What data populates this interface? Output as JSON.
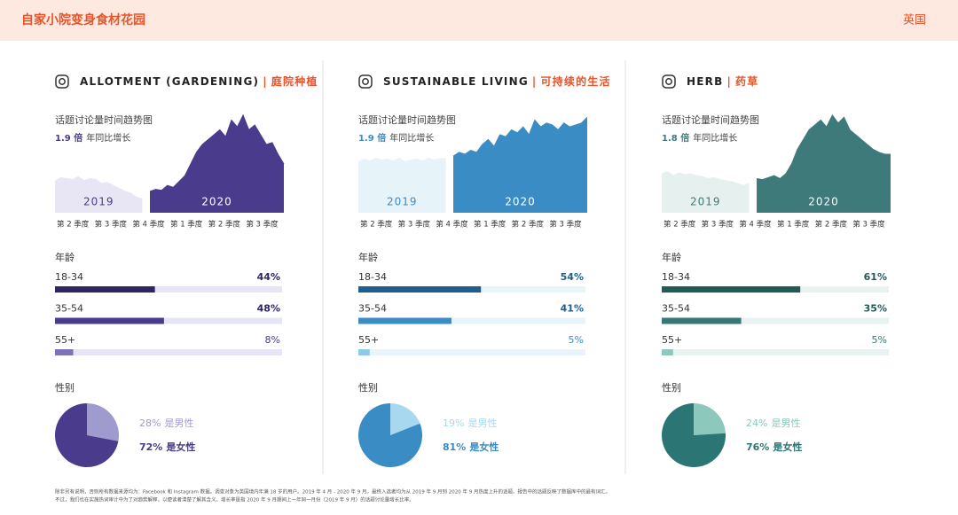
{
  "header": {
    "title": "自家小院变身食材花园",
    "region": "英国"
  },
  "panels": [
    {
      "title_en": "ALLOTMENT (GARDENING)",
      "title_cn": "庭院种植",
      "trend": {
        "type": "area",
        "title": "话题讨论量时间趋势图",
        "growth": "1.9 倍",
        "growth_text": "年同比增长",
        "categories": [
          "第 2 季度",
          "第 3 季度",
          "第 4 季度",
          "第 1 季度",
          "第 2 季度",
          "第 3 季度"
        ],
        "ylim": [
          0,
          100
        ],
        "series": [
          {
            "name": "2019",
            "color": "#e8e6f4",
            "values": [
              32,
              36,
              35,
              34,
              37,
              33,
              35,
              34,
              30,
              31,
              28,
              25,
              22,
              20,
              16,
              14
            ]
          },
          {
            "name": "2020",
            "color": "#4a3b8c",
            "values": [
              22,
              24,
              23,
              28,
              26,
              32,
              38,
              50,
              62,
              70,
              75,
              80,
              85,
              78,
              95,
              88,
              100,
              85,
              90,
              80,
              70,
              72,
              60,
              50
            ]
          }
        ]
      },
      "age": {
        "type": "bar",
        "title": "年龄",
        "categories": [
          "18-34",
          "35-54",
          "55+"
        ],
        "values": [
          44,
          48,
          8
        ],
        "value_labels": [
          "44%",
          "48%",
          "8%"
        ],
        "xlim": [
          0,
          100
        ],
        "colors": [
          "#2e2563",
          "#4a3b8c",
          "#7b72b8"
        ],
        "track": "#e6e5f5"
      },
      "gender": {
        "type": "pie",
        "title": "性别",
        "categories": [
          "是男性",
          "是女性"
        ],
        "values": [
          28,
          72
        ],
        "value_labels": [
          "28%",
          "72%"
        ],
        "colors": [
          "#a09bcf",
          "#4a3b8c"
        ]
      }
    },
    {
      "title_en": "SUSTAINABLE LIVING",
      "title_cn": "可持续的生活",
      "trend": {
        "type": "area",
        "title": "话题讨论量时间趋势图",
        "growth": "1.9 倍",
        "growth_text": "年同比增长",
        "categories": [
          "第 2 季度",
          "第 3 季度",
          "第 4 季度",
          "第 1 季度",
          "第 2 季度",
          "第 3 季度"
        ],
        "ylim": [
          0,
          100
        ],
        "series": [
          {
            "name": "2019",
            "color": "#e6f3f9",
            "values": [
              52,
              55,
              53,
              56,
              54,
              55,
              53,
              56,
              52,
              54,
              55,
              53,
              56,
              54,
              55,
              56
            ]
          },
          {
            "name": "2020",
            "color": "#3a8cc4",
            "values": [
              58,
              62,
              60,
              64,
              62,
              70,
              75,
              68,
              80,
              78,
              85,
              82,
              88,
              80,
              95,
              88,
              92,
              90,
              85,
              92,
              88,
              90,
              92,
              98
            ]
          }
        ]
      },
      "age": {
        "type": "bar",
        "title": "年龄",
        "categories": [
          "18-34",
          "35-54",
          "55+"
        ],
        "values": [
          54,
          41,
          5
        ],
        "value_labels": [
          "54%",
          "41%",
          "5%"
        ],
        "xlim": [
          0,
          100
        ],
        "colors": [
          "#1f5f8f",
          "#3a8cc4",
          "#8ccbe8"
        ],
        "track": "#e8f4fa"
      },
      "gender": {
        "type": "pie",
        "title": "性别",
        "categories": [
          "是男性",
          "是女性"
        ],
        "values": [
          19,
          81
        ],
        "value_labels": [
          "19%",
          "81%"
        ],
        "colors": [
          "#a8d8f0",
          "#3a8cc4"
        ]
      }
    },
    {
      "title_en": "HERB",
      "title_cn": "药草",
      "trend": {
        "type": "area",
        "title": "话题讨论量时间趋势图",
        "growth": "1.8 倍",
        "growth_text": "年同比增长",
        "categories": [
          "第 2 季度",
          "第 3 季度",
          "第 4 季度",
          "第 1 季度",
          "第 2 季度",
          "第 3 季度"
        ],
        "ylim": [
          0,
          100
        ],
        "series": [
          {
            "name": "2019",
            "color": "#e6f1ef",
            "values": [
              40,
              42,
              38,
              41,
              39,
              40,
              38,
              37,
              35,
              36,
              34,
              33,
              32,
              30,
              28,
              30
            ]
          },
          {
            "name": "2020",
            "color": "#3f7a7a",
            "values": [
              35,
              34,
              36,
              38,
              35,
              40,
              50,
              65,
              75,
              85,
              90,
              95,
              88,
              100,
              92,
              98,
              85,
              80,
              75,
              70,
              65,
              62,
              60,
              60
            ]
          }
        ]
      },
      "age": {
        "type": "bar",
        "title": "年龄",
        "categories": [
          "18-34",
          "35-54",
          "55+"
        ],
        "values": [
          61,
          35,
          5
        ],
        "value_labels": [
          "61%",
          "35%",
          "5%"
        ],
        "xlim": [
          0,
          100
        ],
        "colors": [
          "#245a56",
          "#347a74",
          "#8cc9bc"
        ],
        "track": "#e8f2f0"
      },
      "gender": {
        "type": "pie",
        "title": "性别",
        "categories": [
          "是男性",
          "是女性"
        ],
        "values": [
          24,
          76
        ],
        "value_labels": [
          "24%",
          "76%"
        ],
        "colors": [
          "#8cc9bc",
          "#2b7674"
        ]
      }
    }
  ],
  "footnote": [
    "除非另有说明，否则所有数据来源均为：Facebook 和 Instagram 数据。调查对象为英国境内年满 18 岁的用户。2019 年 4 月 - 2020 年 9 月。最终入选者均为从 2019 年 9 月到 2020 年 9 月热度上升的话题。报告中的话题反映了数据库中的最有词汇。",
    "不过，我们也在实施热词审计中为了对趋势解释，以便读者清楚了解其含义。增长率是指 2020 年 9 月期间上一年同一月份（2019 年 9 月）的话题讨论量增长比率。"
  ]
}
